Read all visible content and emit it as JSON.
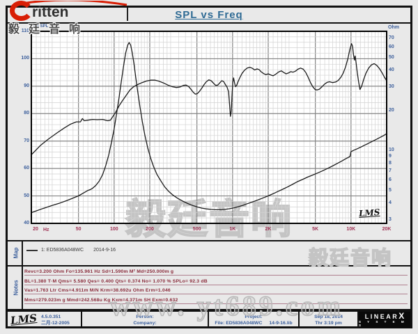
{
  "header": {
    "logo_brand": "ritten",
    "logo_cn": "毅廷音响",
    "title": "SPL vs Freq"
  },
  "chart": {
    "y_left_label": "dB SPL",
    "y_right_label": "Ohm",
    "x_unit": "Hz",
    "signature": "LMS"
  },
  "chart_data": {
    "type": "line",
    "title": "SPL vs Freq",
    "x_axis": {
      "label": "Hz",
      "scale": "log",
      "min": 20,
      "max": 20000,
      "tick_values": [
        20,
        50,
        100,
        200,
        500,
        1000,
        2000,
        5000,
        10000,
        20000
      ],
      "tick_labels": [
        "20",
        "50",
        "100",
        "200",
        "500",
        "1K",
        "2K",
        "5K",
        "10K",
        "20K"
      ]
    },
    "y_left": {
      "label": "dB SPL",
      "scale": "linear",
      "min": 40,
      "max": 110,
      "ticks": [
        110,
        100,
        90,
        80,
        70,
        60,
        50,
        40
      ],
      "minor_step_db": 2
    },
    "y_right": {
      "label": "Ohm",
      "scale": "log",
      "min": 3,
      "max": 70,
      "ticks": [
        70,
        60,
        50,
        40,
        30,
        20,
        10,
        9,
        8,
        7,
        6,
        5,
        4,
        3
      ]
    },
    "grid": "log-frequency major/minor, 2 dB minor horizontal",
    "legend_position": "map-row below chart",
    "series": [
      {
        "name": "1: ED5836A048WC SPL",
        "axis": "left",
        "unit": "dB",
        "points": [
          [
            20,
            65
          ],
          [
            24,
            68.5
          ],
          [
            28,
            70.8
          ],
          [
            33,
            73
          ],
          [
            38,
            74.8
          ],
          [
            43,
            76.2
          ],
          [
            48,
            77
          ],
          [
            52,
            77
          ],
          [
            54,
            78.2
          ],
          [
            56,
            77.4
          ],
          [
            60,
            77.6
          ],
          [
            66,
            77.9
          ],
          [
            72,
            77.8
          ],
          [
            80,
            77.9
          ],
          [
            88,
            77.4
          ],
          [
            93,
            77.6
          ],
          [
            97,
            78.8
          ],
          [
            103,
            80.5
          ],
          [
            110,
            82.8
          ],
          [
            118,
            84.8
          ],
          [
            127,
            86.8
          ],
          [
            136,
            88.6
          ],
          [
            146,
            89.8
          ],
          [
            158,
            90.6
          ],
          [
            172,
            91.3
          ],
          [
            188,
            91.9
          ],
          [
            205,
            92.2
          ],
          [
            222,
            92.2
          ],
          [
            240,
            91.8
          ],
          [
            260,
            91.2
          ],
          [
            285,
            90.4
          ],
          [
            310,
            89.8
          ],
          [
            335,
            89.5
          ],
          [
            360,
            89.7
          ],
          [
            385,
            90.3
          ],
          [
            405,
            90.4
          ],
          [
            425,
            89.9
          ],
          [
            445,
            88.9
          ],
          [
            465,
            87.8
          ],
          [
            485,
            87.1
          ],
          [
            505,
            87.3
          ],
          [
            525,
            88.1
          ],
          [
            550,
            89.3
          ],
          [
            575,
            90.6
          ],
          [
            600,
            91.6
          ],
          [
            630,
            92.3
          ],
          [
            660,
            92
          ],
          [
            690,
            91.1
          ],
          [
            720,
            90.3
          ],
          [
            750,
            90.4
          ],
          [
            780,
            91.2
          ],
          [
            810,
            92
          ],
          [
            840,
            91.7
          ],
          [
            870,
            90.6
          ],
          [
            900,
            89.6
          ],
          [
            925,
            88
          ],
          [
            945,
            83
          ],
          [
            960,
            79
          ],
          [
            975,
            81
          ],
          [
            990,
            87
          ],
          [
            1005,
            91.5
          ],
          [
            1020,
            93
          ],
          [
            1040,
            91.2
          ],
          [
            1060,
            89.8
          ],
          [
            1080,
            90.2
          ],
          [
            1110,
            91.5
          ],
          [
            1150,
            93
          ],
          [
            1200,
            94.6
          ],
          [
            1260,
            95.8
          ],
          [
            1330,
            96.6
          ],
          [
            1400,
            96.9
          ],
          [
            1470,
            96.5
          ],
          [
            1540,
            95.9
          ],
          [
            1610,
            96.3
          ],
          [
            1680,
            96
          ],
          [
            1750,
            95.2
          ],
          [
            1830,
            94.6
          ],
          [
            1910,
            94.2
          ],
          [
            2000,
            94.5
          ],
          [
            2100,
            94.1
          ],
          [
            2200,
            93.8
          ],
          [
            2320,
            94.4
          ],
          [
            2450,
            95.2
          ],
          [
            2580,
            95.6
          ],
          [
            2700,
            95
          ],
          [
            2830,
            94.5
          ],
          [
            2960,
            94.8
          ],
          [
            3100,
            95.3
          ],
          [
            3250,
            95.1
          ],
          [
            3400,
            95.5
          ],
          [
            3570,
            96.2
          ],
          [
            3750,
            96.6
          ],
          [
            3950,
            96.2
          ],
          [
            4150,
            95
          ],
          [
            4350,
            93.2
          ],
          [
            4550,
            91.3
          ],
          [
            4750,
            89.8
          ],
          [
            4950,
            88.9
          ],
          [
            5150,
            88.6
          ],
          [
            5400,
            88.9
          ],
          [
            5700,
            89.8
          ],
          [
            6000,
            90.8
          ],
          [
            6300,
            91.4
          ],
          [
            6600,
            91.6
          ],
          [
            7000,
            91.3
          ],
          [
            7400,
            91.5
          ],
          [
            7800,
            92.1
          ],
          [
            8200,
            93.2
          ],
          [
            8600,
            94.8
          ],
          [
            9000,
            97
          ],
          [
            9400,
            100
          ],
          [
            9800,
            103.5
          ],
          [
            10100,
            105.5
          ],
          [
            10300,
            104.6
          ],
          [
            10500,
            101.5
          ],
          [
            10700,
            99.5
          ],
          [
            10850,
            101
          ],
          [
            11000,
            99
          ],
          [
            11300,
            95
          ],
          [
            11600,
            91.5
          ],
          [
            11900,
            88.8
          ],
          [
            12300,
            90
          ],
          [
            12800,
            92.5
          ],
          [
            13400,
            94.8
          ],
          [
            14100,
            96.6
          ],
          [
            14900,
            97.8
          ],
          [
            15700,
            98.2
          ],
          [
            16500,
            97.6
          ],
          [
            17400,
            96.4
          ],
          [
            18300,
            94.9
          ],
          [
            19100,
            93.4
          ],
          [
            20000,
            92
          ]
        ]
      },
      {
        "name": "1: ED5836A048WC Impedance",
        "axis": "right",
        "unit": "Ohm",
        "points": [
          [
            20,
            3.4
          ],
          [
            25,
            3.65
          ],
          [
            30,
            3.85
          ],
          [
            35,
            4.02
          ],
          [
            40,
            4.2
          ],
          [
            45,
            4.38
          ],
          [
            50,
            4.55
          ],
          [
            55,
            4.78
          ],
          [
            60,
            5
          ],
          [
            63,
            5.08
          ],
          [
            66,
            5.2
          ],
          [
            70,
            5.45
          ],
          [
            75,
            5.9
          ],
          [
            80,
            6.6
          ],
          [
            85,
            7.7
          ],
          [
            90,
            9.2
          ],
          [
            95,
            11.5
          ],
          [
            100,
            14.5
          ],
          [
            105,
            19
          ],
          [
            110,
            25
          ],
          [
            115,
            33
          ],
          [
            120,
            43
          ],
          [
            125,
            54
          ],
          [
            130,
            62
          ],
          [
            134,
            65
          ],
          [
            138,
            62
          ],
          [
            142,
            55
          ],
          [
            147,
            45
          ],
          [
            152,
            36
          ],
          [
            158,
            28
          ],
          [
            165,
            21.5
          ],
          [
            173,
            16.5
          ],
          [
            182,
            13
          ],
          [
            192,
            10.5
          ],
          [
            203,
            8.8
          ],
          [
            215,
            7.6
          ],
          [
            230,
            6.6
          ],
          [
            248,
            5.9
          ],
          [
            268,
            5.3
          ],
          [
            290,
            4.9
          ],
          [
            315,
            4.6
          ],
          [
            345,
            4.35
          ],
          [
            380,
            4.15
          ],
          [
            420,
            3.98
          ],
          [
            460,
            3.85
          ],
          [
            500,
            3.76
          ],
          [
            550,
            3.68
          ],
          [
            600,
            3.63
          ],
          [
            660,
            3.6
          ],
          [
            720,
            3.58
          ],
          [
            790,
            3.58
          ],
          [
            860,
            3.6
          ],
          [
            940,
            3.64
          ],
          [
            1030,
            3.7
          ],
          [
            1130,
            3.78
          ],
          [
            1240,
            3.88
          ],
          [
            1360,
            4
          ],
          [
            1500,
            4.12
          ],
          [
            1650,
            4.25
          ],
          [
            1820,
            4.4
          ],
          [
            2000,
            4.55
          ],
          [
            2200,
            4.72
          ],
          [
            2400,
            4.9
          ],
          [
            2650,
            5.1
          ],
          [
            2900,
            5.3
          ],
          [
            3200,
            5.55
          ],
          [
            3500,
            5.8
          ],
          [
            3900,
            6.05
          ],
          [
            4300,
            6.3
          ],
          [
            4700,
            6.5
          ],
          [
            5200,
            6.75
          ],
          [
            5700,
            7
          ],
          [
            6300,
            7.3
          ],
          [
            6900,
            7.6
          ],
          [
            7600,
            7.95
          ],
          [
            8300,
            8.3
          ],
          [
            9100,
            8.7
          ],
          [
            9800,
            9
          ],
          [
            10000,
            9.8
          ],
          [
            10600,
            10.05
          ],
          [
            11300,
            10.3
          ],
          [
            12100,
            10.6
          ],
          [
            13000,
            10.95
          ],
          [
            14000,
            11.3
          ],
          [
            15100,
            11.7
          ],
          [
            16300,
            12.1
          ],
          [
            17600,
            12.55
          ],
          [
            19000,
            13
          ],
          [
            20000,
            13.4
          ]
        ]
      }
    ]
  },
  "map": {
    "label": "Map",
    "legend": "1: ED5836A048WC",
    "legend_date": "2014-9-16"
  },
  "notes": {
    "label": "Notes",
    "lines": [
      "Revc=3.200 Ohm  Fo=135.961 Hz  Sd=1.590m M²  Md=250.000m g",
      "BL=1.380 T·M  Qms= 5.580  Qes= 0.400  Qts= 0.374  No= 1.070 %  SPLo= 92.3 dB",
      "Vas=1.763 Ltr  Cms=4.911m M/N  Krm=38.692u Ohm  Erm=1.046",
      "Mms=279.023m g  Mmd=242.568u Kg  Kxm=4.371m SH  Exm=0.632"
    ]
  },
  "footer": {
    "lms": "LMS",
    "version": "4.5.0.351",
    "version_date": "二月-12-2005",
    "person_label": "Person:",
    "company_label": "Company:",
    "project_label": "Project:",
    "file": "File: ED5836A048WC",
    "lib": "14-9-16.lib",
    "date": "Sep 18, 2014",
    "time": "Thr  3:19 pm",
    "brand": "LINEAR",
    "brand_x": "X",
    "brand_sub": "S Y S T E M S"
  },
  "watermarks": {
    "chart": "毅廷音响",
    "map_row": "毅廷音响",
    "bottom": "www.  yt689.com"
  },
  "colors": {
    "axis_blue": "#3c5f9c",
    "freq_maroon": "#a03355",
    "notes_maroon": "#8a2a3a",
    "title_blue": "#2e6a94",
    "logo_red": "#d81e05",
    "curve": "#1a1a1a"
  }
}
